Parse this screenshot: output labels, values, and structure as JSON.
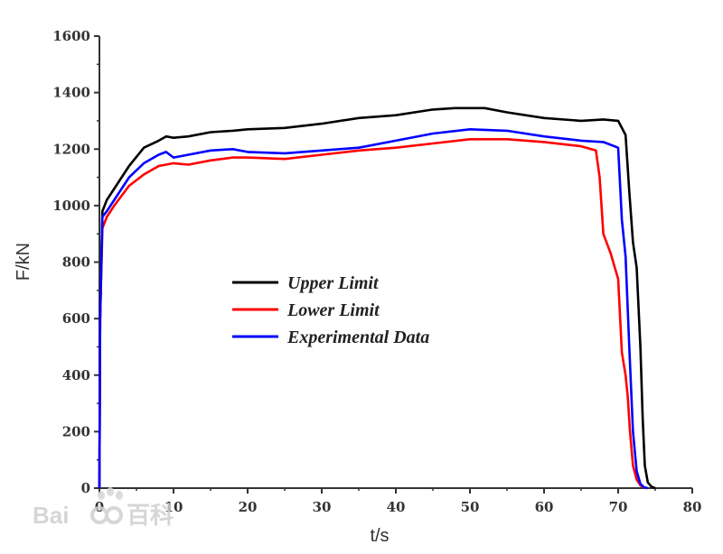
{
  "chart_data": {
    "type": "line",
    "xlabel": "t/s",
    "ylabel": "F/kN",
    "xlim": [
      0,
      80
    ],
    "ylim": [
      0,
      1600
    ],
    "x_ticks": [
      0,
      10,
      20,
      30,
      40,
      50,
      60,
      70,
      80
    ],
    "y_ticks": [
      0,
      200,
      400,
      600,
      800,
      1000,
      1200,
      1400,
      1600
    ],
    "grid": false,
    "legend_position": "center-left",
    "series": [
      {
        "name": "Upper Limit",
        "color": "#000000",
        "x": [
          0,
          0.1,
          0.4,
          1,
          2,
          4,
          6,
          8,
          9,
          10,
          12,
          15,
          18,
          20,
          25,
          30,
          35,
          40,
          45,
          48,
          52,
          55,
          60,
          65,
          68,
          70,
          71,
          71.5,
          72,
          72.5,
          73,
          73.3,
          73.6,
          74,
          74.5,
          75
        ],
        "y": [
          0,
          600,
          980,
          1020,
          1060,
          1140,
          1205,
          1230,
          1245,
          1240,
          1245,
          1260,
          1265,
          1270,
          1275,
          1290,
          1310,
          1320,
          1340,
          1345,
          1345,
          1330,
          1310,
          1300,
          1305,
          1300,
          1250,
          1050,
          870,
          780,
          500,
          250,
          80,
          20,
          5,
          0
        ]
      },
      {
        "name": "Lower Limit",
        "color": "#ff0000",
        "x": [
          0,
          0.1,
          0.4,
          1,
          2,
          4,
          6,
          8,
          10,
          12,
          15,
          18,
          20,
          25,
          30,
          35,
          40,
          45,
          50,
          55,
          60,
          65,
          67,
          67.5,
          68,
          69,
          70,
          70.5,
          71,
          71.3,
          71.6,
          72,
          72.5,
          73,
          73.5,
          74
        ],
        "y": [
          0,
          600,
          920,
          960,
          1000,
          1070,
          1110,
          1140,
          1150,
          1145,
          1160,
          1170,
          1170,
          1165,
          1180,
          1195,
          1205,
          1220,
          1235,
          1235,
          1225,
          1210,
          1195,
          1100,
          900,
          830,
          740,
          480,
          400,
          320,
          200,
          80,
          30,
          10,
          2,
          0
        ]
      },
      {
        "name": "Experimental Data",
        "color": "#0000ff",
        "x": [
          0,
          0.1,
          0.4,
          1,
          2,
          4,
          6,
          8,
          9,
          10,
          12,
          15,
          18,
          20,
          25,
          30,
          35,
          40,
          45,
          50,
          55,
          60,
          65,
          68,
          70,
          70.5,
          71,
          71.5,
          72,
          72.5,
          73,
          73.5,
          74
        ],
        "y": [
          0,
          600,
          960,
          980,
          1020,
          1100,
          1150,
          1180,
          1190,
          1170,
          1180,
          1195,
          1200,
          1190,
          1185,
          1195,
          1205,
          1230,
          1255,
          1270,
          1265,
          1245,
          1230,
          1225,
          1205,
          950,
          820,
          500,
          200,
          60,
          15,
          3,
          0
        ]
      }
    ]
  },
  "watermark": {
    "text_latin": "Bai",
    "text_cjk": "百科"
  }
}
